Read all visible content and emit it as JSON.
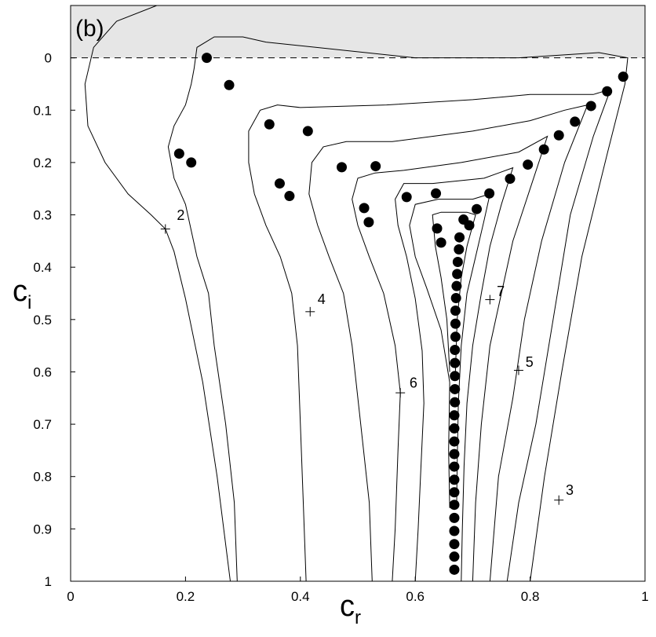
{
  "chart_data": {
    "type": "scatter",
    "panel_label": "(b)",
    "xlabel": "c",
    "xlabel_sub": "r",
    "ylabel": "c",
    "ylabel_sub": "i",
    "xlim": [
      0,
      1
    ],
    "ylim": [
      1,
      -0.1
    ],
    "y_axis_inverted": true,
    "x_ticks": [
      "0",
      "0.2",
      "0.4",
      "0.6",
      "0.8",
      "1"
    ],
    "x_tick_values": [
      0,
      0.2,
      0.4,
      0.6,
      0.8,
      1
    ],
    "y_ticks": [
      "0",
      "0.1",
      "0.2",
      "0.3",
      "0.4",
      "0.5",
      "0.6",
      "0.7",
      "0.8",
      "0.9",
      "1"
    ],
    "y_tick_values": [
      0,
      0.1,
      0.2,
      0.3,
      0.4,
      0.5,
      0.6,
      0.7,
      0.8,
      0.9,
      1
    ],
    "shaded_region": {
      "c_i_from": -0.1,
      "c_i_to": 0,
      "color": "#e6e6e6"
    },
    "reference_line": {
      "c_i": 0,
      "style": "dashed"
    },
    "grid": false,
    "marker_color": "#000000",
    "eigenvalues": [
      [
        0.237,
        0.0
      ],
      [
        0.276,
        0.052
      ],
      [
        0.346,
        0.127
      ],
      [
        0.413,
        0.14
      ],
      [
        0.189,
        0.183
      ],
      [
        0.21,
        0.2
      ],
      [
        0.364,
        0.24
      ],
      [
        0.381,
        0.264
      ],
      [
        0.472,
        0.209
      ],
      [
        0.531,
        0.207
      ],
      [
        0.511,
        0.287
      ],
      [
        0.519,
        0.314
      ],
      [
        0.585,
        0.266
      ],
      [
        0.636,
        0.259
      ],
      [
        0.638,
        0.326
      ],
      [
        0.645,
        0.353
      ],
      [
        0.684,
        0.309
      ],
      [
        0.694,
        0.32
      ],
      [
        0.707,
        0.289
      ],
      [
        0.729,
        0.259
      ],
      [
        0.765,
        0.231
      ],
      [
        0.796,
        0.204
      ],
      [
        0.824,
        0.175
      ],
      [
        0.85,
        0.148
      ],
      [
        0.878,
        0.122
      ],
      [
        0.906,
        0.092
      ],
      [
        0.934,
        0.064
      ],
      [
        0.962,
        0.036
      ],
      [
        0.677,
        0.343
      ],
      [
        0.676,
        0.366
      ],
      [
        0.674,
        0.39
      ],
      [
        0.673,
        0.413
      ],
      [
        0.672,
        0.436
      ],
      [
        0.671,
        0.459
      ],
      [
        0.67,
        0.483
      ],
      [
        0.67,
        0.508
      ],
      [
        0.67,
        0.533
      ],
      [
        0.669,
        0.558
      ],
      [
        0.669,
        0.583
      ],
      [
        0.669,
        0.608
      ],
      [
        0.669,
        0.633
      ],
      [
        0.669,
        0.658
      ],
      [
        0.668,
        0.683
      ],
      [
        0.668,
        0.708
      ],
      [
        0.668,
        0.733
      ],
      [
        0.668,
        0.757
      ],
      [
        0.668,
        0.781
      ],
      [
        0.668,
        0.806
      ],
      [
        0.668,
        0.83
      ],
      [
        0.668,
        0.854
      ],
      [
        0.668,
        0.879
      ],
      [
        0.668,
        0.904
      ],
      [
        0.668,
        0.929
      ],
      [
        0.668,
        0.953
      ],
      [
        0.668,
        0.978
      ]
    ],
    "contours": [
      {
        "label": "2",
        "label_at": [
          0.185,
          0.31
        ],
        "mark_at": [
          0.165,
          0.327
        ],
        "points": [
          [
            0.15,
            -0.1
          ],
          [
            0.08,
            -0.07
          ],
          [
            0.04,
            -0.02
          ],
          [
            0.025,
            0.05
          ],
          [
            0.03,
            0.13
          ],
          [
            0.06,
            0.2
          ],
          [
            0.1,
            0.26
          ],
          [
            0.14,
            0.3
          ],
          [
            0.165,
            0.327
          ],
          [
            0.18,
            0.37
          ],
          [
            0.2,
            0.46
          ],
          [
            0.23,
            0.62
          ],
          [
            0.255,
            0.8
          ],
          [
            0.278,
            1.0
          ]
        ]
      },
      {
        "label": "",
        "points": [
          [
            0.29,
            1.0
          ],
          [
            0.285,
            0.85
          ],
          [
            0.27,
            0.7
          ],
          [
            0.25,
            0.55
          ],
          [
            0.24,
            0.45
          ],
          [
            0.22,
            0.38
          ],
          [
            0.2,
            0.28
          ],
          [
            0.18,
            0.23
          ],
          [
            0.17,
            0.17
          ],
          [
            0.18,
            0.13
          ],
          [
            0.2,
            0.09
          ],
          [
            0.21,
            0.05
          ],
          [
            0.215,
            0.02
          ],
          [
            0.22,
            -0.02
          ],
          [
            0.25,
            -0.04
          ],
          [
            0.3,
            -0.04
          ],
          [
            0.34,
            -0.03
          ],
          [
            0.6,
            0.0
          ],
          [
            0.78,
            0.0
          ],
          [
            0.92,
            -0.01
          ],
          [
            0.97,
            0.0
          ],
          [
            0.965,
            0.05
          ],
          [
            0.935,
            0.18
          ],
          [
            0.89,
            0.38
          ],
          [
            0.855,
            0.6
          ],
          [
            0.825,
            0.8
          ],
          [
            0.8,
            1.0
          ]
        ]
      },
      {
        "label": "4",
        "label_at": [
          0.43,
          0.47
        ],
        "mark_at": [
          0.417,
          0.485
        ],
        "points": [
          [
            0.41,
            1.0
          ],
          [
            0.405,
            0.85
          ],
          [
            0.4,
            0.7
          ],
          [
            0.395,
            0.55
          ],
          [
            0.385,
            0.45
          ],
          [
            0.365,
            0.38
          ],
          [
            0.34,
            0.32
          ],
          [
            0.32,
            0.26
          ],
          [
            0.31,
            0.2
          ],
          [
            0.31,
            0.14
          ],
          [
            0.33,
            0.1
          ],
          [
            0.36,
            0.09
          ],
          [
            0.4,
            0.095
          ],
          [
            0.55,
            0.09
          ],
          [
            0.7,
            0.08
          ],
          [
            0.8,
            0.07
          ],
          [
            0.91,
            0.07
          ],
          [
            0.94,
            0.06
          ],
          [
            0.91,
            0.15
          ],
          [
            0.87,
            0.3
          ],
          [
            0.84,
            0.5
          ],
          [
            0.81,
            0.7
          ],
          [
            0.78,
            0.85
          ],
          [
            0.76,
            1.0
          ]
        ]
      },
      {
        "label": "",
        "points": [
          [
            0.525,
            1.0
          ],
          [
            0.52,
            0.85
          ],
          [
            0.505,
            0.7
          ],
          [
            0.49,
            0.55
          ],
          [
            0.475,
            0.45
          ],
          [
            0.45,
            0.38
          ],
          [
            0.43,
            0.32
          ],
          [
            0.415,
            0.26
          ],
          [
            0.42,
            0.2
          ],
          [
            0.44,
            0.17
          ],
          [
            0.48,
            0.16
          ],
          [
            0.56,
            0.16
          ],
          [
            0.7,
            0.14
          ],
          [
            0.8,
            0.12
          ],
          [
            0.86,
            0.1
          ],
          [
            0.9,
            0.09
          ],
          [
            0.86,
            0.2
          ],
          [
            0.82,
            0.35
          ],
          [
            0.79,
            0.5
          ],
          [
            0.77,
            0.65
          ],
          [
            0.745,
            0.8
          ],
          [
            0.73,
            1.0
          ]
        ]
      },
      {
        "label": "6",
        "label_at": [
          0.59,
          0.63
        ],
        "mark_at": [
          0.574,
          0.64
        ],
        "points": [
          [
            0.56,
            1.0
          ],
          [
            0.565,
            0.9
          ],
          [
            0.57,
            0.75
          ],
          [
            0.574,
            0.64
          ],
          [
            0.565,
            0.55
          ],
          [
            0.545,
            0.45
          ],
          [
            0.52,
            0.38
          ],
          [
            0.5,
            0.32
          ],
          [
            0.49,
            0.27
          ],
          [
            0.5,
            0.23
          ],
          [
            0.53,
            0.22
          ],
          [
            0.58,
            0.215
          ],
          [
            0.68,
            0.2
          ],
          [
            0.78,
            0.18
          ],
          [
            0.83,
            0.15
          ],
          [
            0.8,
            0.25
          ],
          [
            0.77,
            0.35
          ],
          [
            0.75,
            0.45
          ],
          [
            0.73,
            0.55
          ],
          [
            0.715,
            0.7
          ],
          [
            0.705,
            0.85
          ],
          [
            0.7,
            1.0
          ]
        ]
      },
      {
        "label": "",
        "points": [
          [
            0.6,
            1.0
          ],
          [
            0.605,
            0.9
          ],
          [
            0.61,
            0.78
          ],
          [
            0.615,
            0.66
          ],
          [
            0.612,
            0.56
          ],
          [
            0.6,
            0.46
          ],
          [
            0.585,
            0.38
          ],
          [
            0.57,
            0.32
          ],
          [
            0.565,
            0.27
          ],
          [
            0.58,
            0.24
          ],
          [
            0.63,
            0.24
          ],
          [
            0.72,
            0.23
          ],
          [
            0.77,
            0.21
          ],
          [
            0.75,
            0.28
          ],
          [
            0.73,
            0.36
          ],
          [
            0.715,
            0.45
          ],
          [
            0.7,
            0.55
          ],
          [
            0.69,
            0.66
          ],
          [
            0.685,
            0.78
          ],
          [
            0.682,
            0.9
          ],
          [
            0.68,
            1.0
          ]
        ]
      },
      {
        "label": "7",
        "label_at": [
          0.742,
          0.455
        ],
        "mark_at": [
          0.73,
          0.462
        ],
        "points": [
          [
            0.66,
            0.86
          ],
          [
            0.658,
            0.75
          ],
          [
            0.66,
            0.62
          ],
          [
            0.645,
            0.52
          ],
          [
            0.62,
            0.44
          ],
          [
            0.6,
            0.38
          ],
          [
            0.59,
            0.32
          ],
          [
            0.6,
            0.28
          ],
          [
            0.64,
            0.27
          ],
          [
            0.7,
            0.27
          ],
          [
            0.73,
            0.26
          ],
          [
            0.72,
            0.31
          ],
          [
            0.705,
            0.38
          ],
          [
            0.69,
            0.45
          ],
          [
            0.68,
            0.55
          ],
          [
            0.675,
            0.66
          ],
          [
            0.673,
            0.78
          ],
          [
            0.672,
            0.86
          ]
        ]
      },
      {
        "label": "",
        "points": [
          [
            0.66,
            0.6
          ],
          [
            0.655,
            0.5
          ],
          [
            0.645,
            0.42
          ],
          [
            0.635,
            0.36
          ],
          [
            0.63,
            0.3
          ],
          [
            0.645,
            0.295
          ],
          [
            0.69,
            0.295
          ],
          [
            0.705,
            0.3
          ],
          [
            0.69,
            0.36
          ],
          [
            0.68,
            0.42
          ],
          [
            0.673,
            0.5
          ],
          [
            0.67,
            0.6
          ]
        ]
      },
      {
        "label": "5",
        "label_at": [
          0.792,
          0.59
        ],
        "mark_at": [
          0.78,
          0.597
        ],
        "points": []
      },
      {
        "label": "3",
        "label_at": [
          0.862,
          0.835
        ],
        "mark_at": [
          0.85,
          0.845
        ],
        "points": []
      }
    ]
  }
}
